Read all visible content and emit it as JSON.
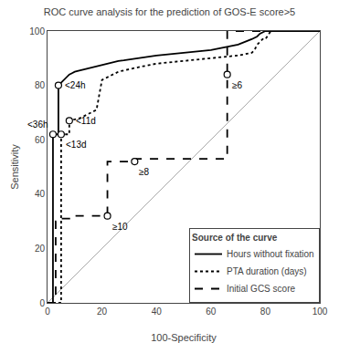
{
  "chart_data": {
    "type": "line",
    "title": "ROC curve analysis for the prediction of GOS-E score>5",
    "xlabel": "100-Specificity",
    "ylabel": "Sensitivity",
    "xlim": [
      0,
      100
    ],
    "ylim": [
      0,
      100
    ],
    "xticks": [
      0,
      20,
      40,
      60,
      80,
      100
    ],
    "yticks": [
      0,
      20,
      40,
      60,
      80,
      100
    ],
    "grid": false,
    "legend": "lower right",
    "legend_title": "Source of the curve",
    "series": [
      {
        "color": "#aaaaaa",
        "line_style": "solid",
        "x": [
          0,
          100
        ],
        "values": [
          0,
          100
        ]
      },
      {
        "name": "Hours without fixation",
        "color": "black",
        "line_style": "solid",
        "x": [
          0,
          2,
          2,
          4,
          4,
          6,
          7,
          8,
          9,
          10,
          12,
          14,
          16,
          18,
          20,
          22,
          24,
          26,
          28,
          30,
          35,
          40,
          50,
          60,
          65,
          70,
          75,
          76,
          77,
          78,
          80,
          100
        ],
        "values": [
          0,
          0,
          62,
          62,
          80,
          82,
          83,
          84,
          84.5,
          85,
          85.5,
          86,
          86.5,
          87,
          87.5,
          88,
          88.5,
          89,
          89.2,
          89.5,
          90,
          91,
          92,
          93,
          94,
          95,
          97,
          97.5,
          98,
          99,
          100,
          100
        ]
      },
      {
        "name": "PTA duration (days)",
        "color": "black",
        "line_style": "dotted",
        "x": [
          0,
          5,
          5,
          8,
          8,
          10,
          12,
          14,
          16,
          18,
          20,
          22,
          24,
          26,
          28,
          30,
          35,
          40,
          50,
          60,
          70,
          75,
          76,
          77,
          79,
          80,
          82,
          100
        ],
        "values": [
          0,
          0,
          62,
          62,
          67,
          67.5,
          68,
          69,
          70,
          71,
          82,
          83,
          84,
          85,
          85.5,
          86,
          87,
          88,
          89,
          90,
          91,
          92,
          93,
          95,
          97,
          97,
          100,
          100
        ]
      },
      {
        "name": "Initial GCS score",
        "color": "black",
        "line_style": "dashed",
        "x": [
          0,
          3,
          3,
          5,
          5,
          8,
          8,
          22,
          22,
          32,
          32,
          35,
          66,
          66,
          100
        ],
        "values": [
          0,
          0,
          30,
          30,
          31,
          31,
          32,
          32,
          52,
          52,
          53,
          53,
          53,
          100,
          100
        ]
      },
      {
        "type": "scatter",
        "marker": "circle-open",
        "color": "black",
        "x": [
          2,
          4,
          5,
          8,
          22,
          32,
          66
        ],
        "values": [
          62,
          80,
          62,
          67,
          32,
          52,
          84
        ]
      }
    ],
    "annotations": [
      {
        "x": 2,
        "y": 62,
        "text": "<36h"
      },
      {
        "x": 4,
        "y": 80,
        "text": "<24h"
      },
      {
        "x": 5,
        "y": 62,
        "text": "<13d"
      },
      {
        "x": 8,
        "y": 67,
        "text": "<11d"
      },
      {
        "x": 22,
        "y": 32,
        "text": "≥10"
      },
      {
        "x": 32,
        "y": 52,
        "text": "≥8"
      },
      {
        "x": 66,
        "y": 84,
        "text": "≥6"
      }
    ]
  }
}
